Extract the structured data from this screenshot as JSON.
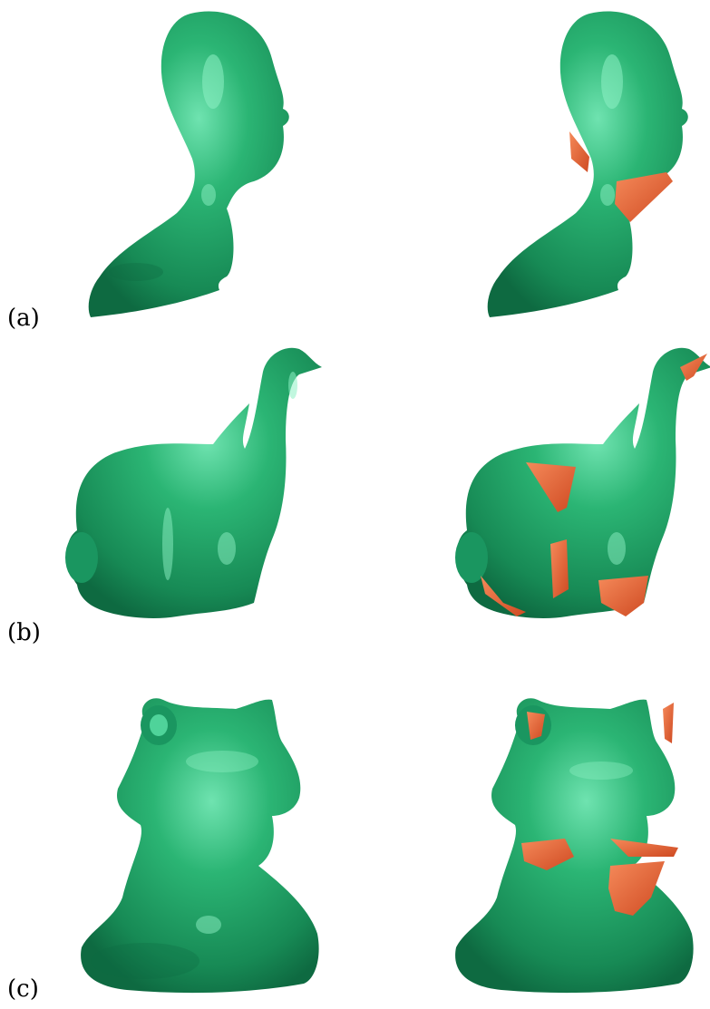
{
  "figure": {
    "rows": [
      {
        "id": "a",
        "label": "(a)"
      },
      {
        "id": "b",
        "label": "(b)"
      },
      {
        "id": "c",
        "label": "(c)"
      }
    ]
  },
  "colors": {
    "mesh_green": "#1f9e63",
    "mesh_green_light": "#4fd39a",
    "mesh_green_dark": "#0e6a41",
    "highlight_orange": "#e0552b",
    "highlight_orange_light": "#f58a5a"
  }
}
